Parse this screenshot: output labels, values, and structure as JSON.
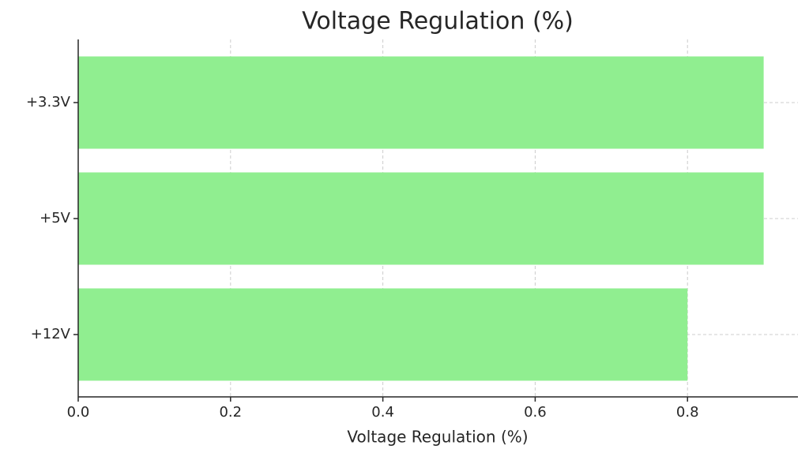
{
  "chart_data": {
    "type": "barh",
    "title": "Voltage Regulation (%)",
    "x_label": "Voltage Regulation (%)",
    "categories": [
      "+3.3V",
      "+5V",
      "+12V"
    ],
    "values": [
      0.9,
      0.9,
      0.8
    ],
    "color": "#90ee90",
    "xlim": [
      0,
      0.945
    ],
    "xticks": [
      {
        "value": 0,
        "label": "0.0"
      },
      0.2,
      0.4,
      0.6,
      0.8
    ],
    "grid": true
  }
}
